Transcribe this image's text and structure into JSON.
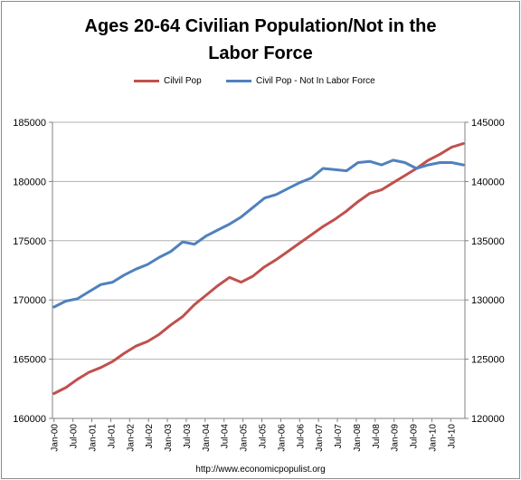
{
  "chart_data": {
    "type": "line",
    "title_line1": "Ages 20-64 Civilian Population/Not in the",
    "title_line2": "Labor Force",
    "x_labels": [
      "Jan-00",
      "Jul-00",
      "Jan-01",
      "Jul-01",
      "Jan-02",
      "Jul-02",
      "Jan-03",
      "Jul-03",
      "Jan-04",
      "Jul-04",
      "Jan-05",
      "Jul-05",
      "Jan-06",
      "Jul-06",
      "Jan-07",
      "Jul-07",
      "Jan-08",
      "Jul-08",
      "Jan-09",
      "Jul-09",
      "Jan-10",
      "Jul-10"
    ],
    "y_left": {
      "min": 160000,
      "max": 185000,
      "ticks": [
        "160000",
        "165000",
        "170000",
        "175000",
        "180000",
        "185000"
      ]
    },
    "y_right": {
      "min": 120000,
      "max": 145000,
      "ticks": [
        "120000",
        "125000",
        "130000",
        "135000",
        "140000",
        "145000"
      ]
    },
    "series": [
      {
        "name": "Cilvil Pop",
        "color": "#c0504d",
        "axis": "left",
        "values": [
          162100,
          162600,
          163300,
          163900,
          164300,
          164800,
          165500,
          166100,
          166500,
          167100,
          167900,
          168600,
          169600,
          170400,
          171200,
          171900,
          171500,
          172000,
          172800,
          173400,
          174100,
          174800,
          175500,
          176200,
          176800,
          177500,
          178300,
          179000,
          179300,
          179900,
          180500,
          181100,
          181800,
          182300,
          182900,
          183200
        ]
      },
      {
        "name": "Civil Pop - Not In Labor Force",
        "color": "#4f81bd",
        "axis": "right",
        "values": [
          129400,
          129900,
          130100,
          130700,
          131300,
          131500,
          132100,
          132600,
          133000,
          133600,
          134100,
          134900,
          134700,
          135400,
          135900,
          136400,
          137000,
          137800,
          138600,
          138900,
          139400,
          139900,
          140300,
          141100,
          141000,
          140900,
          141600,
          141700,
          141400,
          141800,
          141600,
          141100,
          141400,
          141600,
          141600,
          141400
        ]
      }
    ],
    "grid": true,
    "legend_position": "top"
  },
  "footer": "http://www.economicpopulist.org"
}
